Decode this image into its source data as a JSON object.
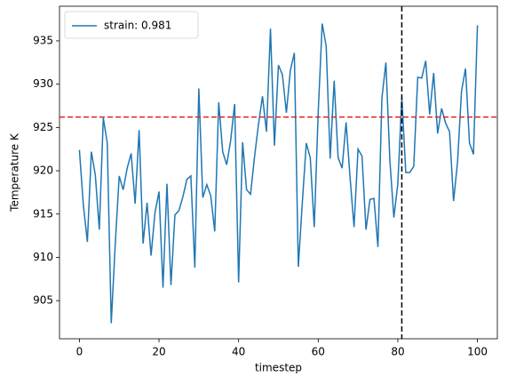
{
  "chart_data": {
    "type": "line",
    "xlabel": "timestep",
    "ylabel": "Temperature K",
    "x": [
      0,
      1,
      2,
      3,
      4,
      5,
      6,
      7,
      8,
      9,
      10,
      11,
      12,
      13,
      14,
      15,
      16,
      17,
      18,
      19,
      20,
      21,
      22,
      23,
      24,
      25,
      26,
      27,
      28,
      29,
      30,
      31,
      32,
      33,
      34,
      35,
      36,
      37,
      38,
      39,
      40,
      41,
      42,
      43,
      44,
      45,
      46,
      47,
      48,
      49,
      50,
      51,
      52,
      53,
      54,
      55,
      56,
      57,
      58,
      59,
      60,
      61,
      62,
      63,
      64,
      65,
      66,
      67,
      68,
      69,
      70,
      71,
      72,
      73,
      74,
      75,
      76,
      77,
      78,
      79,
      80,
      81,
      82,
      83,
      84,
      85,
      86,
      87,
      88,
      89,
      90,
      91,
      92,
      93,
      94,
      95,
      96,
      97,
      98,
      99,
      100
    ],
    "series": [
      {
        "name": "strain: 0.981",
        "color": "#1f77b4",
        "values": [
          922.4,
          916,
          911.8,
          922.2,
          919.5,
          913.2,
          926.1,
          923.2,
          902.4,
          911.5,
          919.4,
          917.8,
          920.3,
          922,
          916.2,
          924.7,
          911.6,
          916.3,
          910.2,
          915.2,
          917.6,
          906.5,
          918.5,
          906.8,
          914.9,
          915.4,
          917,
          919,
          919.4,
          908.8,
          929.5,
          916.9,
          918.4,
          917.1,
          913,
          927.9,
          922.2,
          920.7,
          923.5,
          927.7,
          907.1,
          923.3,
          917.8,
          917.3,
          921.6,
          925.4,
          928.6,
          924.5,
          936.4,
          922.9,
          932.2,
          931.1,
          926.7,
          931.6,
          933.6,
          908.9,
          916.3,
          923.2,
          921.5,
          913.5,
          926.8,
          937,
          934.4,
          921.4,
          930.4,
          921.5,
          920.3,
          925.6,
          919.2,
          913.5,
          922.5,
          921.7,
          913.2,
          916.7,
          916.8,
          911.2,
          928.4,
          932.5,
          921.2,
          914.6,
          918.5,
          928.5,
          919.8,
          919.8,
          920.5,
          930.8,
          930.7,
          932.7,
          926.5,
          931.3,
          924.3,
          927.2,
          925.5,
          924.5,
          916.5,
          921,
          929.2,
          931.8,
          923.2,
          921.9,
          936.8
        ]
      }
    ],
    "hline": 926.2,
    "hline_color": "#d62728",
    "vline": 81,
    "vline_color": "#000000",
    "xlim": [
      -5,
      105
    ],
    "ylim": [
      900.6,
      939.0
    ],
    "xticks": [
      0,
      20,
      40,
      60,
      80,
      100
    ],
    "yticks": [
      905,
      910,
      915,
      920,
      925,
      930,
      935
    ],
    "legend": "upper left"
  }
}
